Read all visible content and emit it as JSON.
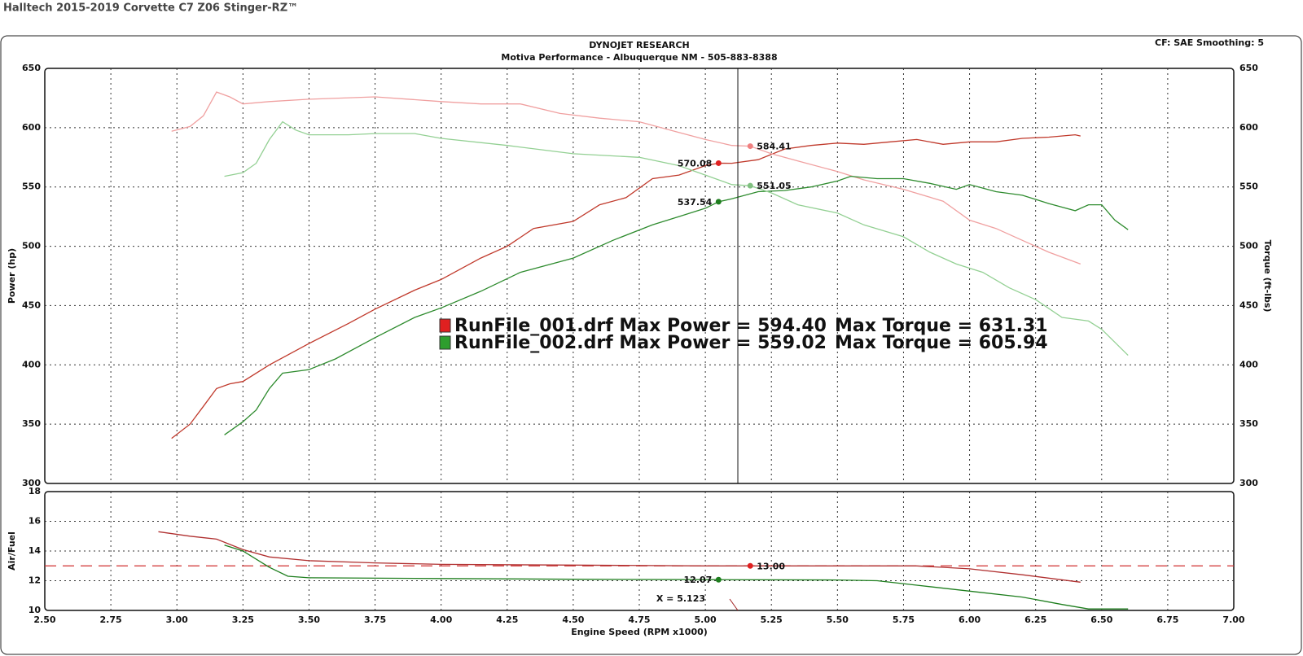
{
  "title": "Halltech 2015-2019 Corvette C7 Z06 Stinger-RZ™",
  "header": {
    "company": "DYNOJET RESEARCH",
    "shop": "Motiva Performance - Albuquerque NM - 505-883-8388",
    "settings": "CF: SAE  Smoothing: 5"
  },
  "chart_data": [
    {
      "type": "line",
      "y_label": "Power (hp)",
      "y2_label": "Torque (ft-lbs)",
      "ylim": [
        300,
        650
      ],
      "yticks": [
        300,
        350,
        400,
        450,
        500,
        550,
        600,
        650
      ],
      "y2lim": [
        300,
        650
      ],
      "y2ticks": [
        300,
        350,
        400,
        450,
        500,
        550,
        600,
        650
      ],
      "grid": true,
      "series": [
        {
          "color": "#c0392b",
          "x": [
            2.98,
            3.05,
            3.1,
            3.15,
            3.2,
            3.25,
            3.35,
            3.5,
            3.65,
            3.75,
            3.9,
            4.0,
            4.15,
            4.25,
            4.35,
            4.5,
            4.6,
            4.7,
            4.8,
            4.9,
            5.0,
            5.05,
            5.1,
            5.2,
            5.3,
            5.4,
            5.5,
            5.6,
            5.7,
            5.8,
            5.9,
            6.0,
            6.1,
            6.2,
            6.3,
            6.4,
            6.42
          ],
          "values": [
            338,
            350,
            365,
            380,
            384,
            386,
            400,
            418,
            435,
            447,
            463,
            472,
            490,
            500,
            515,
            521,
            535,
            541,
            557,
            560,
            568,
            570.08,
            570,
            573,
            582,
            585,
            587,
            586,
            588,
            590,
            586,
            588,
            588,
            591,
            592,
            594,
            593
          ]
        },
        {
          "color": "#f0a0a0",
          "axis": "y2",
          "x": [
            2.98,
            3.05,
            3.1,
            3.15,
            3.2,
            3.25,
            3.35,
            3.5,
            3.75,
            4.0,
            4.15,
            4.3,
            4.45,
            4.6,
            4.75,
            4.9,
            5.0,
            5.1,
            5.17,
            5.25,
            5.35,
            5.5,
            5.6,
            5.75,
            5.9,
            6.0,
            6.1,
            6.2,
            6.3,
            6.42
          ],
          "values": [
            597,
            601,
            610,
            630,
            626,
            620,
            622,
            624,
            626,
            622,
            620,
            620,
            612,
            608,
            605,
            596,
            590,
            585,
            584.41,
            578,
            572,
            563,
            556,
            548,
            538,
            522,
            515,
            505,
            495,
            485
          ]
        },
        {
          "color": "#2e8b2e",
          "x": [
            3.18,
            3.25,
            3.3,
            3.35,
            3.4,
            3.5,
            3.6,
            3.75,
            3.9,
            4.0,
            4.15,
            4.3,
            4.5,
            4.65,
            4.8,
            4.9,
            5.0,
            5.05,
            5.1,
            5.2,
            5.3,
            5.4,
            5.5,
            5.55,
            5.65,
            5.75,
            5.85,
            5.95,
            6.0,
            6.1,
            6.2,
            6.3,
            6.4,
            6.45,
            6.5,
            6.55,
            6.6
          ],
          "values": [
            341,
            352,
            362,
            380,
            393,
            396,
            405,
            423,
            440,
            448,
            462,
            478,
            490,
            505,
            518,
            525,
            532,
            537.54,
            540,
            546,
            547,
            550,
            555,
            559,
            557,
            557,
            553,
            548,
            552,
            546,
            543,
            536,
            530,
            535,
            535,
            522,
            514
          ]
        },
        {
          "color": "#93d093",
          "axis": "y2",
          "x": [
            3.18,
            3.25,
            3.3,
            3.35,
            3.4,
            3.45,
            3.5,
            3.65,
            3.75,
            3.9,
            4.0,
            4.25,
            4.5,
            4.75,
            4.9,
            5.0,
            5.1,
            5.17,
            5.25,
            5.35,
            5.5,
            5.6,
            5.75,
            5.85,
            5.95,
            6.05,
            6.15,
            6.25,
            6.35,
            6.45,
            6.5,
            6.6
          ],
          "values": [
            559,
            562,
            570,
            590,
            605,
            598,
            594,
            594,
            595,
            595,
            591,
            585,
            578,
            575,
            568,
            560,
            552,
            551.05,
            545,
            535,
            528,
            518,
            508,
            495,
            485,
            478,
            465,
            455,
            440,
            437,
            430,
            408
          ]
        }
      ],
      "markers": [
        {
          "x": 5.05,
          "value": 570.08,
          "color": "#e02020"
        },
        {
          "x": 5.17,
          "value": 584.41,
          "color": "#f08080"
        },
        {
          "x": 5.05,
          "value": 537.54,
          "color": "#1e7e1e"
        },
        {
          "x": 5.17,
          "value": 551.05,
          "color": "#80c080"
        }
      ],
      "legend": [
        {
          "color": "#e02020",
          "power": "RunFile_001.drf Max Power = 594.40",
          "torque": "Max Torque = 631.31"
        },
        {
          "color": "#2e9e2e",
          "power": "RunFile_002.drf Max Power = 559.02",
          "torque": "Max Torque = 605.94"
        }
      ]
    },
    {
      "type": "line",
      "y_label": "Air/Fuel",
      "x_label": "Engine Speed (RPM x1000)",
      "xlim": [
        2.5,
        7.0
      ],
      "xticks": [
        {
          "value": 2.5,
          "label": "2.50"
        },
        {
          "value": 2.75,
          "label": "2.75"
        },
        {
          "value": 3.0,
          "label": "3.00"
        },
        {
          "value": 3.25,
          "label": "3.25"
        },
        {
          "value": 3.5,
          "label": "3.50"
        },
        {
          "value": 3.75,
          "label": "3.75"
        },
        {
          "value": 4.0,
          "label": "4.00"
        },
        {
          "value": 4.25,
          "label": "4.25"
        },
        {
          "value": 4.5,
          "label": "4.50"
        },
        {
          "value": 4.75,
          "label": "4.75"
        },
        {
          "value": 5.0,
          "label": "5.00"
        },
        {
          "value": 5.25,
          "label": "5.25"
        },
        {
          "value": 5.5,
          "label": "5.50"
        },
        {
          "value": 5.75,
          "label": "5.75"
        },
        {
          "value": 6.0,
          "label": "6.00"
        },
        {
          "value": 6.25,
          "label": "6.25"
        },
        {
          "value": 6.5,
          "label": "6.50"
        },
        {
          "value": 6.75,
          "label": "6.75"
        },
        {
          "value": 7.0,
          "label": "7.00"
        }
      ],
      "ylim": [
        10,
        18
      ],
      "yticks": [
        10,
        12,
        14,
        16,
        18
      ],
      "grid": true,
      "reference_line": {
        "value": 13,
        "color": "#d03030"
      },
      "series": [
        {
          "color": "#b03030",
          "x": [
            2.93,
            3.05,
            3.15,
            3.25,
            3.35,
            3.5,
            3.75,
            4.0,
            4.5,
            5.0,
            5.25,
            5.5,
            5.8,
            6.0,
            6.2,
            6.42
          ],
          "values": [
            15.3,
            15.0,
            14.8,
            14.1,
            13.6,
            13.35,
            13.2,
            13.1,
            13.05,
            13.0,
            13.0,
            13.0,
            13.0,
            12.8,
            12.4,
            11.9
          ]
        },
        {
          "color": "#1e7e1e",
          "x": [
            3.18,
            3.25,
            3.35,
            3.42,
            3.5,
            4.0,
            4.5,
            5.05,
            5.5,
            5.65,
            5.8,
            6.0,
            6.2,
            6.35,
            6.45,
            6.6
          ],
          "values": [
            14.4,
            14.0,
            12.9,
            12.3,
            12.2,
            12.15,
            12.1,
            12.07,
            12.05,
            12.0,
            11.7,
            11.3,
            10.9,
            10.4,
            10.1,
            10.1
          ]
        }
      ],
      "markers": [
        {
          "x": 5.17,
          "value": 13,
          "label": "13.00",
          "color": "#e02020"
        },
        {
          "x": 5.05,
          "value": 12.07,
          "color": "#1e7e1e"
        }
      ],
      "cursor": {
        "value": 5.123,
        "label": "X = 5.123"
      }
    }
  ]
}
